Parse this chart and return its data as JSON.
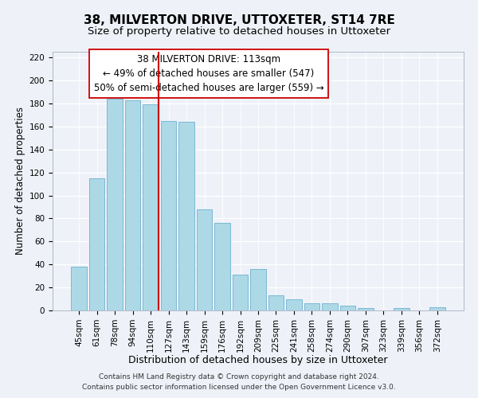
{
  "title": "38, MILVERTON DRIVE, UTTOXETER, ST14 7RE",
  "subtitle": "Size of property relative to detached houses in Uttoxeter",
  "xlabel": "Distribution of detached houses by size in Uttoxeter",
  "ylabel": "Number of detached properties",
  "bar_labels": [
    "45sqm",
    "61sqm",
    "78sqm",
    "94sqm",
    "110sqm",
    "127sqm",
    "143sqm",
    "159sqm",
    "176sqm",
    "192sqm",
    "209sqm",
    "225sqm",
    "241sqm",
    "258sqm",
    "274sqm",
    "290sqm",
    "307sqm",
    "323sqm",
    "339sqm",
    "356sqm",
    "372sqm"
  ],
  "bar_values": [
    38,
    115,
    184,
    183,
    179,
    165,
    164,
    88,
    76,
    31,
    36,
    13,
    10,
    6,
    6,
    4,
    2,
    0,
    2,
    0,
    3
  ],
  "bar_color": "#add8e6",
  "bar_edge_color": "#7ab8d4",
  "highlight_index": 4,
  "highlight_line_color": "#cc0000",
  "annotation_text_line1": "38 MILVERTON DRIVE: 113sqm",
  "annotation_text_line2": "← 49% of detached houses are smaller (547)",
  "annotation_text_line3": "50% of semi-detached houses are larger (559) →",
  "ylim": [
    0,
    225
  ],
  "yticks": [
    0,
    20,
    40,
    60,
    80,
    100,
    120,
    140,
    160,
    180,
    200,
    220
  ],
  "footnote1": "Contains HM Land Registry data © Crown copyright and database right 2024.",
  "footnote2": "Contains public sector information licensed under the Open Government Licence v3.0.",
  "bg_color": "#eef2f8",
  "title_fontsize": 11,
  "subtitle_fontsize": 9.5,
  "xlabel_fontsize": 9,
  "ylabel_fontsize": 8.5,
  "tick_fontsize": 7.5,
  "footnote_fontsize": 6.5,
  "annot_fontsize": 8.5
}
